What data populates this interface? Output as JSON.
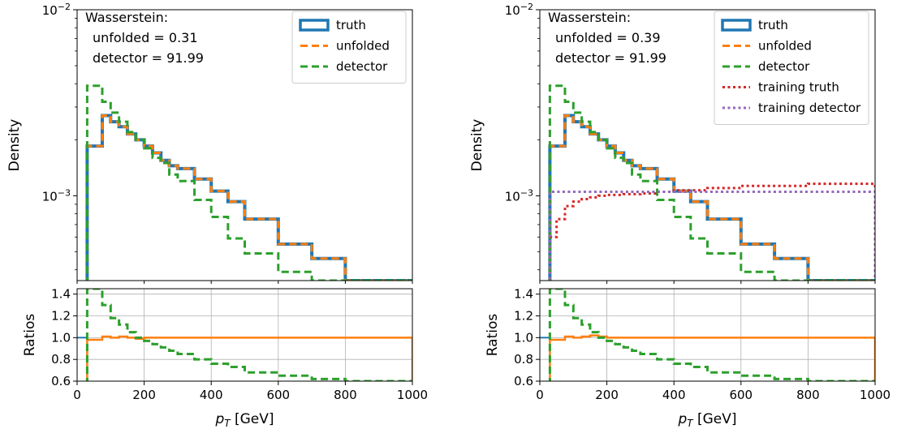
{
  "chart_data": [
    {
      "type": "histogram",
      "panel": "left",
      "xlabel_prefix": "p",
      "xlabel_sub": "T",
      "xlabel_suffix": " [GeV]",
      "ylabel": "Density",
      "ratio_ylabel": "Ratios",
      "xlim": [
        0,
        1000
      ],
      "ylim": [
        0.00035,
        0.01
      ],
      "yscale": "log",
      "ratio_ylim": [
        0.6,
        1.45
      ],
      "x_ticks": [
        "0",
        "200",
        "400",
        "600",
        "800",
        "1000"
      ],
      "y_ticks": [
        {
          "base": "10",
          "exp": "−2"
        },
        {
          "base": "10",
          "exp": "−3"
        }
      ],
      "ratio_ticks": [
        "0.6",
        "0.8",
        "1.0",
        "1.2",
        "1.4"
      ],
      "annotation": {
        "title": "Wasserstein:",
        "line1": "unfolded = 0.31",
        "line2": "detector = 91.99"
      },
      "legend_position": "top-right",
      "bin_edges": [
        30,
        75,
        100,
        125,
        150,
        175,
        200,
        225,
        250,
        275,
        300,
        350,
        400,
        450,
        500,
        600,
        700,
        800,
        1000
      ],
      "series": [
        {
          "name": "truth",
          "color": "#1f77b4",
          "style": "solid",
          "values": [
            0.00185,
            0.0027,
            0.0025,
            0.00235,
            0.00215,
            0.002,
            0.00185,
            0.0017,
            0.00155,
            0.00145,
            0.0014,
            0.00123,
            0.00106,
            0.00093,
            0.00075,
            0.00055,
            0.00046,
            0.00035
          ]
        },
        {
          "name": "unfolded",
          "color": "#ff7f0e",
          "style": "dashed",
          "values": [
            0.00185,
            0.0027,
            0.0025,
            0.00235,
            0.00215,
            0.002,
            0.00185,
            0.0017,
            0.00155,
            0.00145,
            0.0014,
            0.00123,
            0.00106,
            0.00093,
            0.00075,
            0.00055,
            0.00046,
            0.00035
          ]
        },
        {
          "name": "detector",
          "color": "#2ca02c",
          "style": "dashed",
          "values": [
            0.0039,
            0.0032,
            0.0028,
            0.0025,
            0.0022,
            0.002,
            0.0018,
            0.0016,
            0.0015,
            0.0013,
            0.0012,
            0.00095,
            0.00077,
            0.00059,
            0.00049,
            0.00039,
            0.00034,
            0.00034
          ]
        }
      ],
      "ratio_series": [
        {
          "name": "unfolded",
          "color": "#ff7f0e",
          "style": "solid",
          "values": [
            0.98,
            1.01,
            1.0,
            1.01,
            1.0,
            0.99,
            1.0,
            1.0,
            1.0,
            1.0,
            1.0,
            1.0,
            1.0,
            1.0,
            1.0,
            1.0,
            1.0,
            1.0
          ]
        },
        {
          "name": "detector",
          "color": "#2ca02c",
          "style": "dashed",
          "values": [
            2.1,
            1.3,
            1.18,
            1.12,
            1.05,
            1.0,
            0.97,
            0.94,
            0.91,
            0.88,
            0.85,
            0.8,
            0.76,
            0.73,
            0.68,
            0.65,
            0.62,
            0.6
          ]
        }
      ]
    },
    {
      "type": "histogram",
      "panel": "right",
      "xlabel_prefix": "p",
      "xlabel_sub": "T",
      "xlabel_suffix": " [GeV]",
      "ylabel": "Density",
      "ratio_ylabel": "Ratios",
      "xlim": [
        0,
        1000
      ],
      "ylim": [
        0.00035,
        0.01
      ],
      "yscale": "log",
      "ratio_ylim": [
        0.6,
        1.45
      ],
      "x_ticks": [
        "0",
        "200",
        "400",
        "600",
        "800",
        "1000"
      ],
      "y_ticks": [
        {
          "base": "10",
          "exp": "−2"
        },
        {
          "base": "10",
          "exp": "−3"
        }
      ],
      "ratio_ticks": [
        "0.6",
        "0.8",
        "1.0",
        "1.2",
        "1.4"
      ],
      "annotation": {
        "title": "Wasserstein:",
        "line1": "unfolded = 0.39",
        "line2": "detector = 91.99"
      },
      "legend_position": "top-right",
      "bin_edges": [
        30,
        75,
        100,
        125,
        150,
        175,
        200,
        225,
        250,
        275,
        300,
        350,
        400,
        450,
        500,
        600,
        700,
        800,
        1000
      ],
      "series": [
        {
          "name": "truth",
          "color": "#1f77b4",
          "style": "solid",
          "values": [
            0.00185,
            0.0027,
            0.0025,
            0.00235,
            0.00215,
            0.002,
            0.00185,
            0.0017,
            0.00155,
            0.00145,
            0.0014,
            0.00123,
            0.00106,
            0.00093,
            0.00075,
            0.00055,
            0.00046,
            0.00035
          ]
        },
        {
          "name": "unfolded",
          "color": "#ff7f0e",
          "style": "dashed",
          "values": [
            0.00185,
            0.0027,
            0.0025,
            0.00235,
            0.00215,
            0.002,
            0.00185,
            0.0017,
            0.00155,
            0.00145,
            0.0014,
            0.00123,
            0.00106,
            0.00093,
            0.00075,
            0.00055,
            0.00046,
            0.00035
          ]
        },
        {
          "name": "detector",
          "color": "#2ca02c",
          "style": "dashed",
          "values": [
            0.0039,
            0.0032,
            0.0028,
            0.0025,
            0.0022,
            0.002,
            0.0018,
            0.0016,
            0.0015,
            0.0013,
            0.0012,
            0.00095,
            0.00077,
            0.00059,
            0.00049,
            0.00039,
            0.00034,
            0.00034
          ]
        },
        {
          "name": "training truth",
          "color": "#d62728",
          "style": "dotted",
          "bin_edges": [
            30,
            50,
            75,
            100,
            125,
            150,
            175,
            200,
            250,
            300,
            350,
            400,
            500,
            600,
            800,
            1000
          ],
          "values": [
            0.0006,
            0.00075,
            0.00088,
            0.00093,
            0.00096,
            0.00098,
            0.001,
            0.00101,
            0.00102,
            0.00103,
            0.00105,
            0.00107,
            0.0011,
            0.00113,
            0.00116
          ]
        },
        {
          "name": "training detector",
          "color": "#9467bd",
          "style": "dotted",
          "bin_edges": [
            30,
            1000
          ],
          "values": [
            0.00105
          ]
        }
      ],
      "ratio_series": [
        {
          "name": "unfolded",
          "color": "#ff7f0e",
          "style": "solid",
          "values": [
            0.98,
            1.01,
            1.0,
            1.01,
            1.02,
            1.01,
            1.0,
            1.0,
            1.0,
            1.0,
            1.0,
            1.0,
            1.0,
            1.0,
            1.0,
            1.0,
            1.0,
            1.0
          ]
        },
        {
          "name": "detector",
          "color": "#2ca02c",
          "style": "dashed",
          "values": [
            2.1,
            1.3,
            1.18,
            1.12,
            1.05,
            1.0,
            0.97,
            0.94,
            0.91,
            0.88,
            0.85,
            0.8,
            0.76,
            0.73,
            0.68,
            0.65,
            0.62,
            0.6
          ]
        }
      ]
    }
  ]
}
